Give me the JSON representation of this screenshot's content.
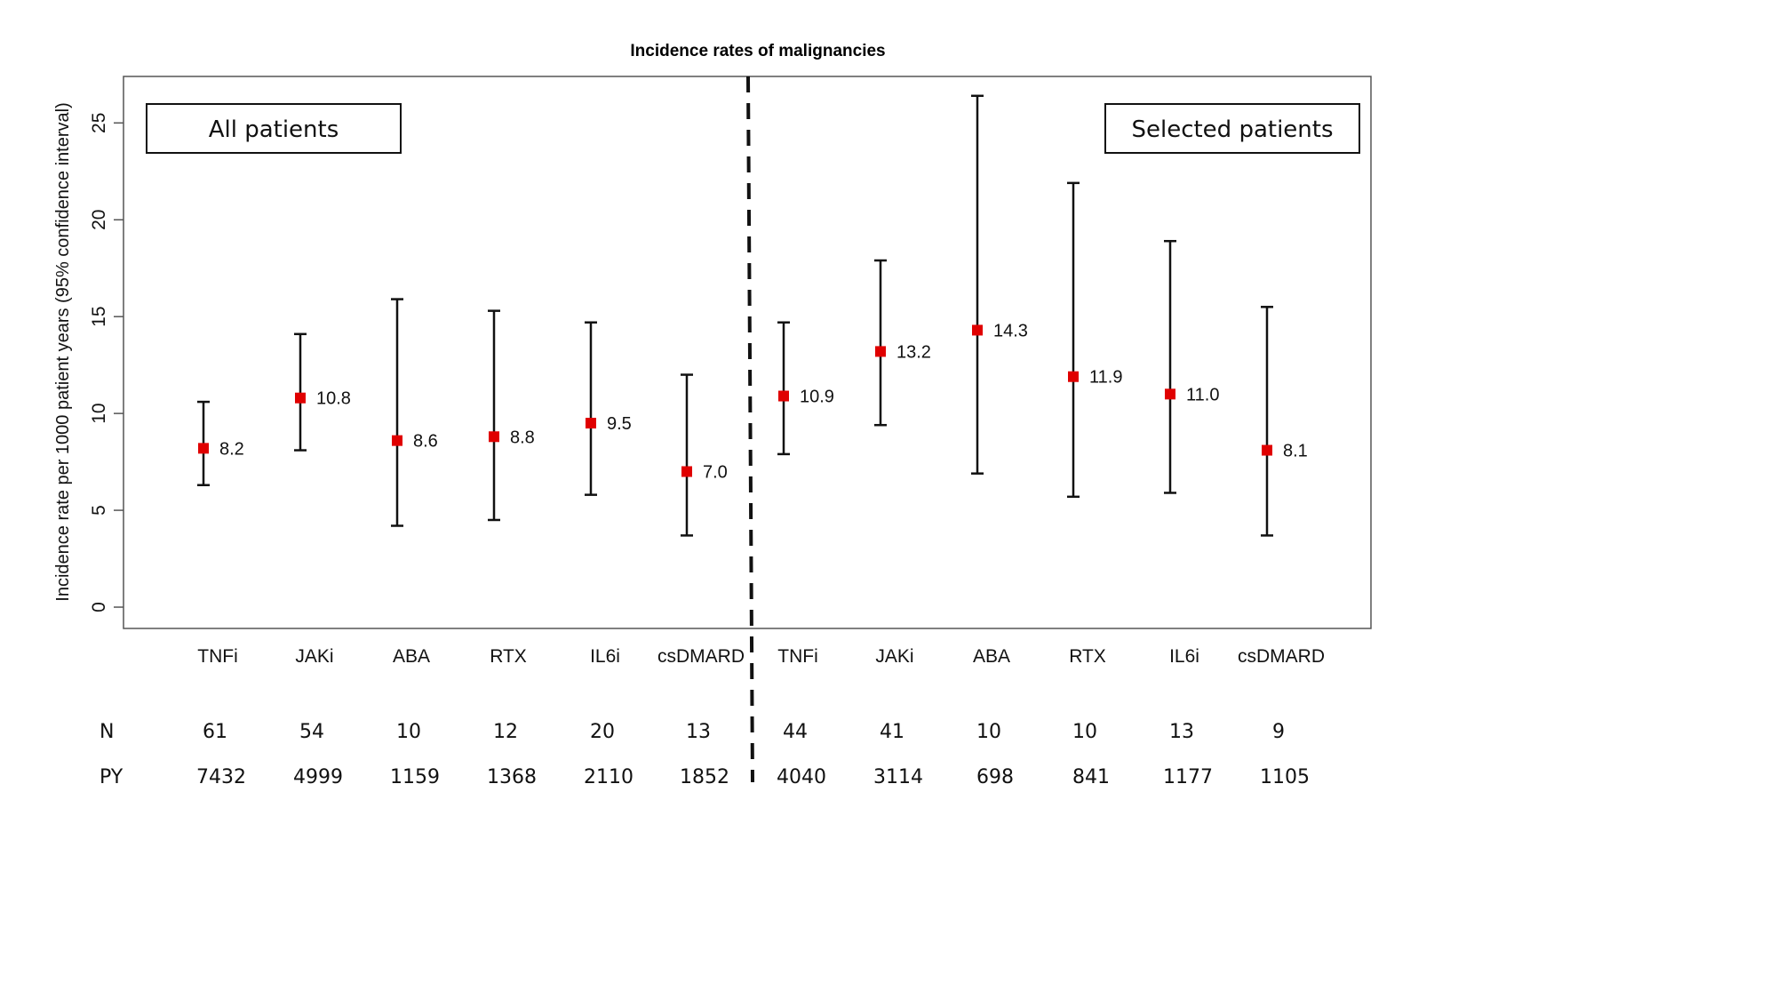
{
  "chart_data": {
    "type": "errorbar",
    "title": "Incidence rates of malignancies",
    "xlabel": "",
    "ylabel": "Incidence rate per 1000 patient years (95% confidence interval)",
    "ylim": [
      -1.1,
      27.4
    ],
    "yticks": [
      "0",
      "5",
      "10",
      "15",
      "20",
      "25"
    ],
    "ytick_values": [
      0,
      5,
      10,
      15,
      20,
      25
    ],
    "grid": false,
    "marker_color": "#e00000",
    "groups": [
      {
        "label": "All patients",
        "points": [
          {
            "category": "TNFi",
            "value": 8.2,
            "value_label": "8.2",
            "ci_low": 6.3,
            "ci_high": 10.6,
            "N": "61",
            "PY": "7432"
          },
          {
            "category": "JAKi",
            "value": 10.8,
            "value_label": "10.8",
            "ci_low": 8.1,
            "ci_high": 14.1,
            "N": "54",
            "PY": "4999"
          },
          {
            "category": "ABA",
            "value": 8.6,
            "value_label": "8.6",
            "ci_low": 4.2,
            "ci_high": 15.9,
            "N": "10",
            "PY": "1159"
          },
          {
            "category": "RTX",
            "value": 8.8,
            "value_label": "8.8",
            "ci_low": 4.5,
            "ci_high": 15.3,
            "N": "12",
            "PY": "1368"
          },
          {
            "category": "IL6i",
            "value": 9.5,
            "value_label": "9.5",
            "ci_low": 5.8,
            "ci_high": 14.7,
            "N": "20",
            "PY": "2110"
          },
          {
            "category": "csDMARD",
            "value": 7.0,
            "value_label": "7.0",
            "ci_low": 3.7,
            "ci_high": 12.0,
            "N": "13",
            "PY": "1852"
          }
        ]
      },
      {
        "label": "Selected patients",
        "points": [
          {
            "category": "TNFi",
            "value": 10.9,
            "value_label": "10.9",
            "ci_low": 7.9,
            "ci_high": 14.7,
            "N": "44",
            "PY": "4040"
          },
          {
            "category": "JAKi",
            "value": 13.2,
            "value_label": "13.2",
            "ci_low": 9.4,
            "ci_high": 17.9,
            "N": "41",
            "PY": "3114"
          },
          {
            "category": "ABA",
            "value": 14.3,
            "value_label": "14.3",
            "ci_low": 6.9,
            "ci_high": 26.4,
            "N": "10",
            "PY": "698"
          },
          {
            "category": "RTX",
            "value": 11.9,
            "value_label": "11.9",
            "ci_low": 5.7,
            "ci_high": 21.9,
            "N": "10",
            "PY": "841"
          },
          {
            "category": "IL6i",
            "value": 11.0,
            "value_label": "11.0",
            "ci_low": 5.9,
            "ci_high": 18.9,
            "N": "13",
            "PY": "1177"
          },
          {
            "category": "csDMARD",
            "value": 8.1,
            "value_label": "8.1",
            "ci_low": 3.7,
            "ci_high": 15.5,
            "N": "9",
            "PY": "1105"
          }
        ]
      }
    ],
    "table_rows": {
      "n_label": "N",
      "py_label": "PY"
    }
  }
}
